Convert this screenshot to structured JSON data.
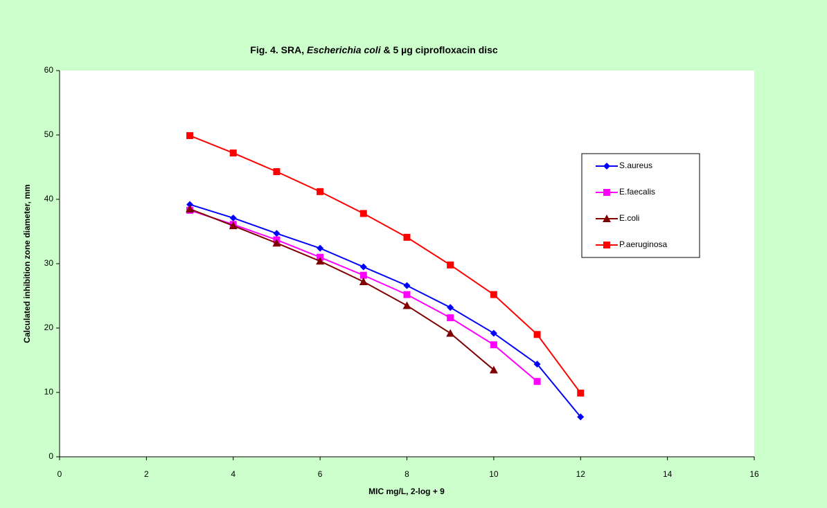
{
  "chart_data": {
    "type": "line",
    "title": [
      "Fig. 4.  SRA, ",
      "Escherichia coli",
      " & 5 µg ciprofloxacin disc"
    ],
    "x_label": "MIC mg/L, 2-log + 9",
    "y_label": "Calculated inhibition zone diameter, mm",
    "x": [
      3,
      4,
      5,
      6,
      7,
      8,
      9,
      10,
      11,
      12
    ],
    "series": [
      {
        "name": "S.aureus",
        "color": "#0000ff",
        "marker": "diamond",
        "values": [
          39.2,
          37.1,
          34.7,
          32.4,
          29.5,
          26.6,
          23.2,
          19.2,
          14.4,
          6.2
        ]
      },
      {
        "name": "E.faecalis",
        "color": "#ff00ff",
        "marker": "square",
        "values": [
          38.3,
          36.1,
          33.7,
          31.0,
          28.2,
          25.2,
          21.6,
          17.4,
          11.7,
          null
        ]
      },
      {
        "name": "E.coli",
        "color": "#800000",
        "marker": "triangle",
        "values": [
          38.5,
          35.9,
          33.2,
          30.4,
          27.2,
          23.5,
          19.2,
          13.5,
          null,
          null
        ]
      },
      {
        "name": "P.aeruginosa",
        "color": "#ff0000",
        "marker": "square",
        "values": [
          49.9,
          47.2,
          44.3,
          41.2,
          37.8,
          34.1,
          29.8,
          25.2,
          19.0,
          9.9
        ]
      }
    ],
    "xlim": [
      0,
      16
    ],
    "xticks": [
      0,
      2,
      4,
      6,
      8,
      10,
      12,
      14,
      16
    ],
    "ylim": [
      0,
      60
    ],
    "yticks": [
      0,
      10,
      20,
      30,
      40,
      50,
      60
    ],
    "grid": false,
    "legend": "right"
  }
}
